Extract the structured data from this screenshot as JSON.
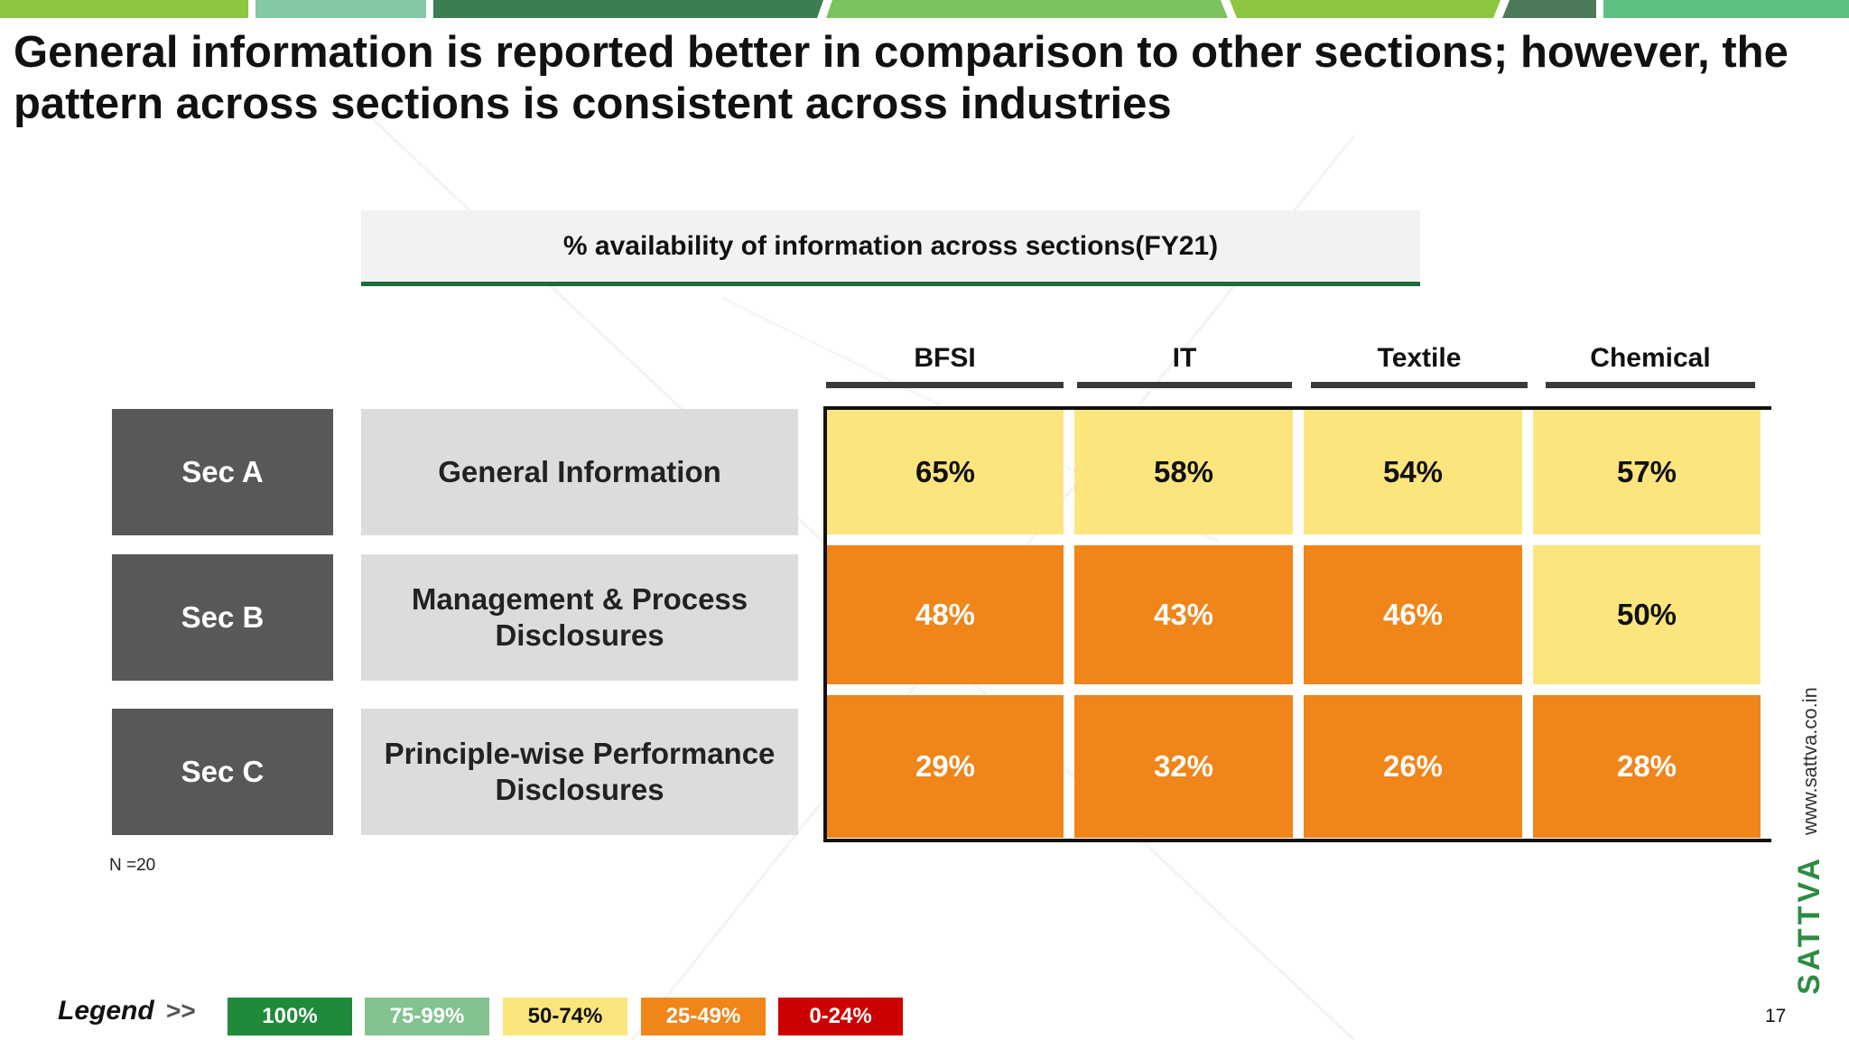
{
  "slide": {
    "title": "General information is reported better in comparison to other sections; however, the pattern across sections is consistent across industries",
    "page_number": "17",
    "sample_note": "N =20",
    "side_url": "www.sattva.co.in",
    "brand": "SATTVA"
  },
  "colors": {
    "top_bar": [
      "#8dc63f",
      "#84c8a6",
      "#3d7d52",
      "#7cc25e",
      "#4e7a5a",
      "#5dbf82"
    ],
    "legend": [
      "#1f8a3a",
      "#84c28f",
      "#fde57e",
      "#f08519",
      "#cc0000"
    ],
    "accent_green": "#1f6b3d"
  },
  "chart_data": {
    "type": "heatmap",
    "title": "% availability of information across sections(FY21)",
    "columns": [
      "BFSI",
      "IT",
      "Textile",
      "Chemical"
    ],
    "rows": [
      {
        "section": "Sec A",
        "name": "General Information",
        "values": [
          65,
          58,
          54,
          57
        ],
        "labels": [
          "65%",
          "58%",
          "54%",
          "57%"
        ]
      },
      {
        "section": "Sec B",
        "name": "Management & Process Disclosures",
        "values": [
          48,
          43,
          46,
          50
        ],
        "labels": [
          "48%",
          "43%",
          "46%",
          "50%"
        ]
      },
      {
        "section": "Sec C",
        "name": "Principle-wise Performance Disclosures",
        "values": [
          29,
          32,
          26,
          28
        ],
        "labels": [
          "29%",
          "32%",
          "26%",
          "28%"
        ]
      }
    ],
    "legend": {
      "label": "Legend",
      "arrows": ">>",
      "bins": [
        {
          "label": "100%",
          "color": "#1f8a3a",
          "text_color": "#ffffff",
          "min": 100,
          "max": 100
        },
        {
          "label": "75-99%",
          "color": "#84c28f",
          "text_color": "#ffffff",
          "min": 75,
          "max": 99
        },
        {
          "label": "50-74%",
          "color": "#fde57e",
          "text_color": "#111111",
          "min": 50,
          "max": 74
        },
        {
          "label": "25-49%",
          "color": "#f08519",
          "text_color": "#ffffff",
          "min": 25,
          "max": 49
        },
        {
          "label": "0-24%",
          "color": "#cc0000",
          "text_color": "#ffffff",
          "min": 0,
          "max": 24
        }
      ]
    }
  }
}
